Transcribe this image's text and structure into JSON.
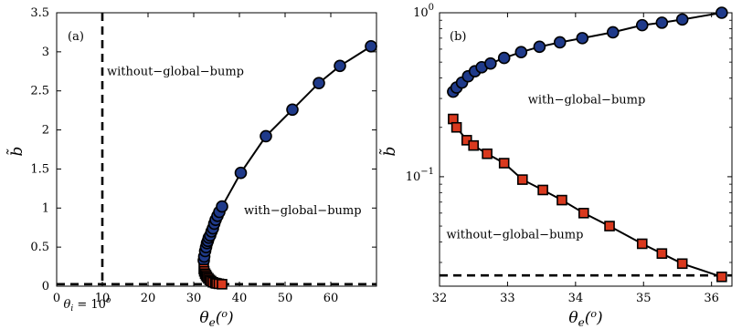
{
  "chart_data": [
    {
      "panel_label": "(a)",
      "type": "line",
      "xlabel": "θe(o)",
      "ylabel": "b̃",
      "xlim": [
        0,
        70
      ],
      "ylim": [
        0,
        3.5
      ],
      "xticks": [
        "0",
        "10",
        "20",
        "30",
        "40",
        "50",
        "60"
      ],
      "yticks": [
        "0",
        "0.5",
        "1",
        "1.5",
        "2",
        "2.5",
        "3",
        "3.5"
      ],
      "xtick_values": [
        0,
        10,
        20,
        30,
        40,
        50,
        60
      ],
      "ytick_values": [
        0,
        0.5,
        1,
        1.5,
        2,
        2.5,
        3,
        3.5
      ],
      "grid": false,
      "series": [
        {
          "name": "with−global−bump",
          "marker": "circle",
          "color": "#1f3a8a",
          "x": [
            32.2,
            32.3,
            32.5,
            32.7,
            32.9,
            33.1,
            33.3,
            33.6,
            33.9,
            34.2,
            34.5,
            34.8,
            35.2,
            35.6,
            36.2,
            40.3,
            45.8,
            51.6,
            57.4,
            62.0,
            68.8
          ],
          "y": [
            0.33,
            0.38,
            0.45,
            0.5,
            0.55,
            0.58,
            0.62,
            0.65,
            0.7,
            0.74,
            0.8,
            0.85,
            0.9,
            0.95,
            1.02,
            1.45,
            1.92,
            2.26,
            2.6,
            2.82,
            3.07
          ]
        },
        {
          "name": "without−global−bump",
          "marker": "square",
          "color": "#d9391e",
          "x": [
            32.2,
            32.3,
            32.5,
            32.7,
            32.9,
            33.2,
            33.5,
            33.8,
            34.2,
            34.7,
            35.0,
            35.5,
            36.2
          ],
          "y": [
            0.22,
            0.19,
            0.16,
            0.14,
            0.12,
            0.1,
            0.08,
            0.065,
            0.05,
            0.04,
            0.035,
            0.03,
            0.025
          ]
        }
      ],
      "reference_lines": [
        {
          "orientation": "vertical",
          "value": 10,
          "style": "dashed"
        },
        {
          "orientation": "horizontal",
          "value": 0.025,
          "style": "dashed"
        }
      ],
      "annotations": [
        {
          "text": "without−global−bump",
          "x": 11,
          "y": 2.7
        },
        {
          "text": "with−global−bump",
          "x": 41,
          "y": 0.92
        },
        {
          "text": "θi = 10o",
          "x": 1.5,
          "y": -0.28
        }
      ]
    },
    {
      "panel_label": "(b)",
      "type": "line",
      "xlabel": "θe(o)",
      "ylabel": "b̃",
      "xlim": [
        32,
        36.3
      ],
      "ylim": [
        0.0215,
        1.0
      ],
      "yscale": "log",
      "xticks": [
        "32",
        "33",
        "34",
        "35",
        "36"
      ],
      "xtick_values": [
        32,
        33,
        34,
        35,
        36
      ],
      "yticks": [
        "10",
        "10"
      ],
      "ytick_exponents": [
        "−1",
        "0"
      ],
      "ytick_values": [
        0.1,
        1
      ],
      "grid": false,
      "series": [
        {
          "name": "with−global−bump",
          "marker": "circle",
          "color": "#1f3a8a",
          "x": [
            32.2,
            32.25,
            32.33,
            32.42,
            32.52,
            32.62,
            32.75,
            32.95,
            33.2,
            33.47,
            33.77,
            34.1,
            34.55,
            34.98,
            35.27,
            35.57,
            36.15
          ],
          "y": [
            0.33,
            0.35,
            0.375,
            0.41,
            0.44,
            0.465,
            0.49,
            0.53,
            0.575,
            0.62,
            0.66,
            0.7,
            0.76,
            0.84,
            0.87,
            0.91,
            1.0
          ]
        },
        {
          "name": "without−global−bump",
          "marker": "square",
          "color": "#d9391e",
          "x": [
            32.2,
            32.25,
            32.4,
            32.5,
            32.7,
            32.95,
            33.22,
            33.52,
            33.8,
            34.12,
            34.5,
            34.98,
            35.27,
            35.57,
            36.15
          ],
          "y": [
            0.225,
            0.2,
            0.167,
            0.155,
            0.138,
            0.121,
            0.096,
            0.083,
            0.072,
            0.06,
            0.05,
            0.039,
            0.034,
            0.0295,
            0.0245
          ]
        }
      ],
      "reference_lines": [
        {
          "orientation": "horizontal",
          "value": 0.025,
          "style": "dashed"
        }
      ],
      "annotations": [
        {
          "text": "with−global−bump",
          "x": 33.3,
          "y": 0.28
        },
        {
          "text": "without−global−bump",
          "x": 32.1,
          "y": 0.042
        }
      ]
    }
  ]
}
